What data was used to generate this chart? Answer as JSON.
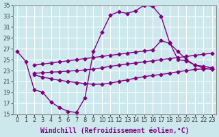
{
  "background_color": "#cce8ec",
  "grid_color": "#ffffff",
  "line_color": "#800080",
  "marker": "D",
  "marker_size": 2.5,
  "line_width": 1.0,
  "xlabel": "Windchill (Refroidissement éolien,°C)",
  "xlabel_fontsize": 7,
  "tick_fontsize": 6,
  "xlim": [
    -0.5,
    23.5
  ],
  "ylim": [
    15,
    35
  ],
  "yticks": [
    15,
    17,
    19,
    21,
    23,
    25,
    27,
    29,
    31,
    33,
    35
  ],
  "xticks": [
    0,
    1,
    2,
    3,
    4,
    5,
    6,
    7,
    8,
    9,
    10,
    11,
    12,
    13,
    14,
    15,
    16,
    17,
    18,
    19,
    20,
    21,
    22,
    23
  ],
  "curve1_x": [
    0,
    1,
    2,
    3,
    4,
    5,
    6,
    7,
    8,
    9,
    10,
    11,
    12,
    13,
    14,
    15,
    16,
    17,
    18,
    19,
    20,
    21,
    22,
    23
  ],
  "curve1_y": [
    26.5,
    24.7,
    19.5,
    19.0,
    17.2,
    16.2,
    15.5,
    15.3,
    18.0,
    26.5,
    30.0,
    33.2,
    33.8,
    33.5,
    34.0,
    35.0,
    34.8,
    33.0,
    28.2,
    25.0,
    24.8,
    24.0,
    23.5,
    23.2
  ],
  "curve2_x": [
    2,
    3,
    4,
    5,
    6,
    7,
    8,
    9,
    10,
    11,
    12,
    13,
    14,
    15,
    16,
    17,
    18,
    19,
    20,
    21,
    22,
    23
  ],
  "curve2_y": [
    24.0,
    24.2,
    24.4,
    24.6,
    24.8,
    25.0,
    25.2,
    25.4,
    25.6,
    25.8,
    26.0,
    26.2,
    26.4,
    26.6,
    26.8,
    28.5,
    28.0,
    26.5,
    25.0,
    24.0,
    23.8,
    23.5
  ],
  "curve3_x": [
    2,
    3,
    4,
    5,
    6,
    7,
    8,
    9,
    10,
    11,
    12,
    13,
    14,
    15,
    16,
    17,
    18,
    19,
    20,
    21,
    22,
    23
  ],
  "curve3_y": [
    22.5,
    22.6,
    22.7,
    22.8,
    22.9,
    23.0,
    23.1,
    23.3,
    23.5,
    23.8,
    24.0,
    24.2,
    24.4,
    24.6,
    24.8,
    25.0,
    25.2,
    25.4,
    25.6,
    25.8,
    26.0,
    26.2
  ],
  "curve4_x": [
    2,
    3,
    4,
    5,
    6,
    7,
    8,
    9,
    10,
    11,
    12,
    13,
    14,
    15,
    16,
    17,
    18,
    19,
    20,
    21,
    22,
    23
  ],
  "curve4_y": [
    22.2,
    21.8,
    21.5,
    21.2,
    21.0,
    20.8,
    20.6,
    20.5,
    20.5,
    20.7,
    21.0,
    21.3,
    21.6,
    21.9,
    22.1,
    22.3,
    22.5,
    22.8,
    23.0,
    23.2,
    23.3,
    23.3
  ]
}
